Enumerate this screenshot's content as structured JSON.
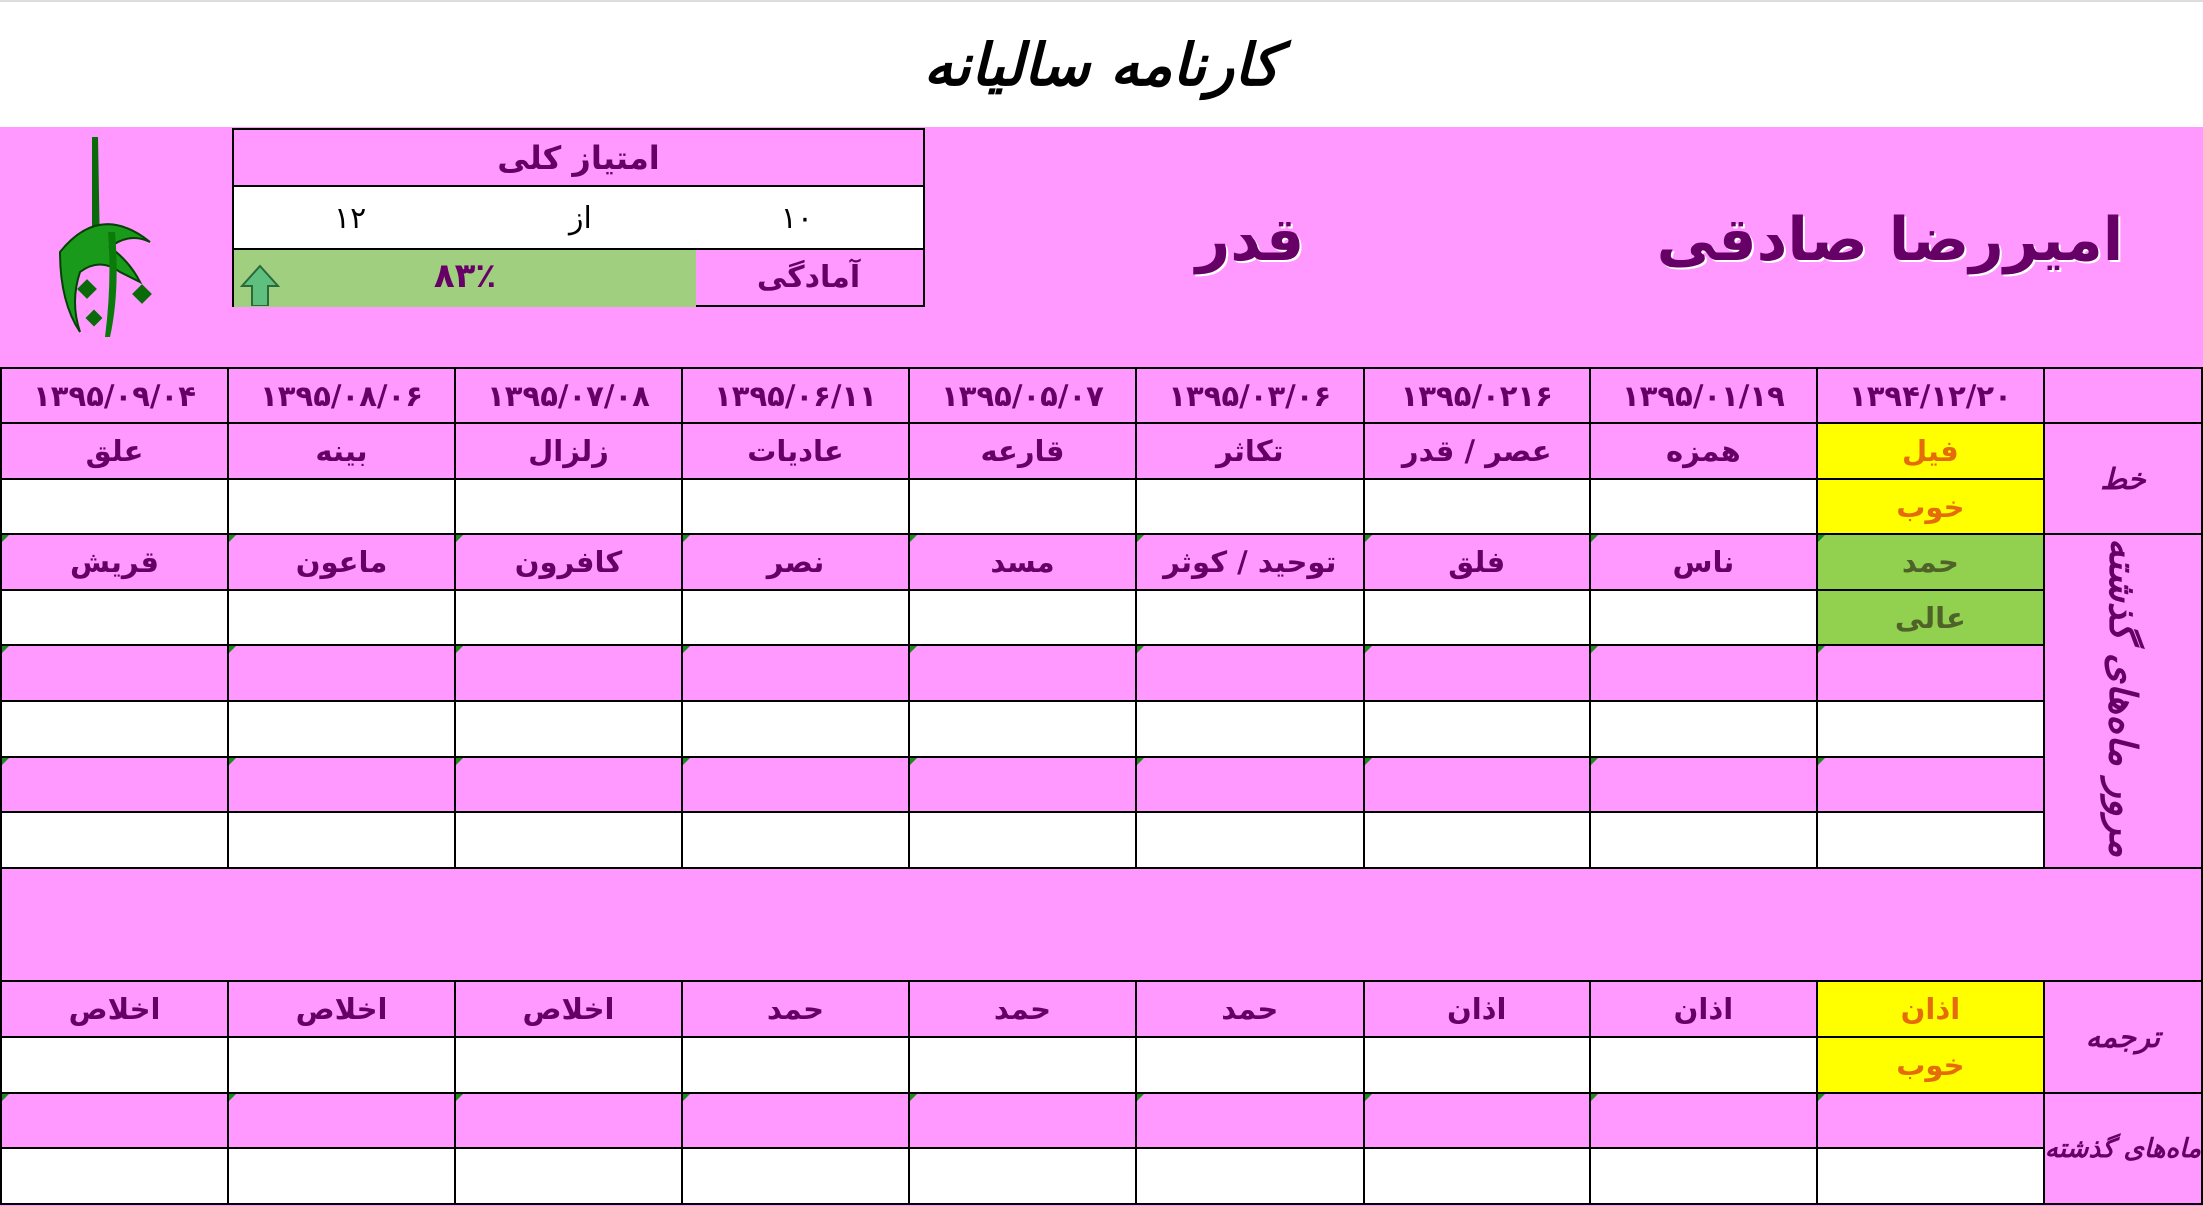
{
  "title": "کارنامه سالیانه",
  "student_name": "امیررضا صادقی",
  "group_name": "قدر",
  "score": {
    "title": "امتیاز کلی",
    "earned": "۱۰",
    "of_label": "از",
    "total": "۱۲",
    "readiness_label": "آمادگی",
    "readiness_value": "۸۳٪",
    "readiness_percent": 83,
    "trend_icon": "arrow-up-icon"
  },
  "colors": {
    "pink": "#ff99ff",
    "text": "#660066",
    "yellow": "#ffff00",
    "orange_text": "#e46c0a",
    "green": "#92d050",
    "green_text": "#4f6228",
    "progress": "#a0cf80"
  },
  "sections": {
    "khat": "خط",
    "morur": "مرور ماه‌های گذشته",
    "tarjome": "ترجمه",
    "tarjome_past": "ماه‌های گذشته"
  },
  "columns": [
    {
      "date": "۱۳۹۴/۱۲/۲۰",
      "khat": "فیل",
      "khat_grade": "خوب",
      "morur": "حمد",
      "morur_grade": "عالی",
      "tarjome": "اذان",
      "tarjome_grade": "خوب"
    },
    {
      "date": "۱۳۹۵/۰۱/۱۹",
      "khat": "همزه",
      "morur": "ناس",
      "tarjome": "اذان"
    },
    {
      "date": "۱۳۹۵/۰۲۱۶",
      "khat": "عصر / قدر",
      "morur": "فلق",
      "tarjome": "اذان"
    },
    {
      "date": "۱۳۹۵/۰۳/۰۶",
      "khat": "تکاثر",
      "morur": "توحید / کوثر",
      "tarjome": "حمد"
    },
    {
      "date": "۱۳۹۵/۰۵/۰۷",
      "khat": "قارعه",
      "morur": "مسد",
      "tarjome": "حمد"
    },
    {
      "date": "۱۳۹۵/۰۶/۱۱",
      "khat": "عادیات",
      "morur": "نصر",
      "tarjome": "حمد"
    },
    {
      "date": "۱۳۹۵/۰۷/۰۸",
      "khat": "زلزال",
      "morur": "کافرون",
      "tarjome": "اخلاص"
    },
    {
      "date": "۱۳۹۵/۰۸/۰۶",
      "khat": "بینه",
      "morur": "ماعون",
      "tarjome": "اخلاص"
    },
    {
      "date": "۱۳۹۵/۰۹/۰۴",
      "khat": "علق",
      "morur": "قریش",
      "tarjome": "اخلاص"
    }
  ]
}
